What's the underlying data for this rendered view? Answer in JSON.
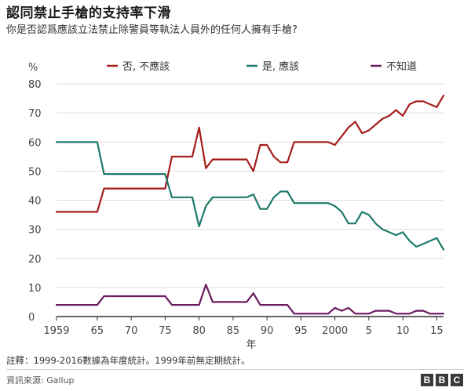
{
  "title": "認同禁止手槍的支持率下滑",
  "subtitle": "你是否認爲應該立法禁止除警員等執法人員外的任何人擁有手槍?",
  "note": "註釋：1999-2016數據為年度統計。1999年前無定期統計。",
  "source": "資訊來源: Gallup",
  "logo": [
    "B",
    "B",
    "C"
  ],
  "chart_data": {
    "type": "line",
    "ylabel": "%",
    "xlabel": "年",
    "ylim": [
      0,
      80
    ],
    "xlim": [
      1959,
      2016
    ],
    "yticks": [
      0,
      10,
      20,
      30,
      40,
      50,
      60,
      70,
      80
    ],
    "xticks": [
      {
        "x": 1959,
        "label": "1959"
      },
      {
        "x": 1965,
        "label": "65"
      },
      {
        "x": 1970,
        "label": "70"
      },
      {
        "x": 1975,
        "label": "75"
      },
      {
        "x": 1980,
        "label": "80"
      },
      {
        "x": 1985,
        "label": "85"
      },
      {
        "x": 1990,
        "label": "90"
      },
      {
        "x": 1995,
        "label": "95"
      },
      {
        "x": 2000,
        "label": "2000"
      },
      {
        "x": 2005,
        "label": "5"
      },
      {
        "x": 2010,
        "label": "10"
      },
      {
        "x": 2015,
        "label": "15"
      }
    ],
    "grid": true,
    "legend_position": "top",
    "series": [
      {
        "name": "否, 不應該",
        "color": "#a51c1c",
        "points": [
          [
            1959,
            36
          ],
          [
            1965,
            36
          ],
          [
            1966,
            44
          ],
          [
            1974,
            44
          ],
          [
            1975,
            44
          ],
          [
            1976,
            55
          ],
          [
            1978,
            55
          ],
          [
            1979,
            55
          ],
          [
            1980,
            65
          ],
          [
            1981,
            51
          ],
          [
            1982,
            54
          ],
          [
            1984,
            54
          ],
          [
            1986,
            54
          ],
          [
            1987,
            54
          ],
          [
            1988,
            50
          ],
          [
            1989,
            59
          ],
          [
            1990,
            59
          ],
          [
            1991,
            55
          ],
          [
            1992,
            53
          ],
          [
            1993,
            53
          ],
          [
            1994,
            60
          ],
          [
            1999,
            60
          ],
          [
            2000,
            59
          ],
          [
            2001,
            62
          ],
          [
            2002,
            65
          ],
          [
            2003,
            67
          ],
          [
            2004,
            63
          ],
          [
            2005,
            64
          ],
          [
            2006,
            66
          ],
          [
            2007,
            68
          ],
          [
            2008,
            69
          ],
          [
            2009,
            71
          ],
          [
            2010,
            69
          ],
          [
            2011,
            73
          ],
          [
            2012,
            74
          ],
          [
            2013,
            74
          ],
          [
            2014,
            73
          ],
          [
            2015,
            72
          ],
          [
            2016,
            76
          ]
        ]
      },
      {
        "name": "是, 應該",
        "color": "#1d7a6a",
        "points": [
          [
            1959,
            60
          ],
          [
            1965,
            60
          ],
          [
            1966,
            49
          ],
          [
            1974,
            49
          ],
          [
            1975,
            49
          ],
          [
            1976,
            41
          ],
          [
            1978,
            41
          ],
          [
            1979,
            41
          ],
          [
            1980,
            31
          ],
          [
            1981,
            38
          ],
          [
            1982,
            41
          ],
          [
            1984,
            41
          ],
          [
            1986,
            41
          ],
          [
            1987,
            41
          ],
          [
            1988,
            42
          ],
          [
            1989,
            37
          ],
          [
            1990,
            37
          ],
          [
            1991,
            41
          ],
          [
            1992,
            43
          ],
          [
            1993,
            43
          ],
          [
            1994,
            39
          ],
          [
            1999,
            39
          ],
          [
            2000,
            38
          ],
          [
            2001,
            36
          ],
          [
            2002,
            32
          ],
          [
            2003,
            32
          ],
          [
            2004,
            36
          ],
          [
            2005,
            35
          ],
          [
            2006,
            32
          ],
          [
            2007,
            30
          ],
          [
            2008,
            29
          ],
          [
            2009,
            28
          ],
          [
            2010,
            29
          ],
          [
            2011,
            26
          ],
          [
            2012,
            24
          ],
          [
            2013,
            25
          ],
          [
            2014,
            26
          ],
          [
            2015,
            27
          ],
          [
            2016,
            23
          ]
        ]
      },
      {
        "name": "不知道",
        "color": "#6b1a5e",
        "points": [
          [
            1959,
            4
          ],
          [
            1965,
            4
          ],
          [
            1966,
            7
          ],
          [
            1974,
            7
          ],
          [
            1975,
            7
          ],
          [
            1976,
            4
          ],
          [
            1978,
            4
          ],
          [
            1979,
            4
          ],
          [
            1980,
            4
          ],
          [
            1981,
            11
          ],
          [
            1982,
            5
          ],
          [
            1984,
            5
          ],
          [
            1986,
            5
          ],
          [
            1987,
            5
          ],
          [
            1988,
            8
          ],
          [
            1989,
            4
          ],
          [
            1990,
            4
          ],
          [
            1991,
            4
          ],
          [
            1992,
            4
          ],
          [
            1993,
            4
          ],
          [
            1994,
            1
          ],
          [
            1999,
            1
          ],
          [
            2000,
            3
          ],
          [
            2001,
            2
          ],
          [
            2002,
            3
          ],
          [
            2003,
            1
          ],
          [
            2004,
            1
          ],
          [
            2005,
            1
          ],
          [
            2006,
            2
          ],
          [
            2007,
            2
          ],
          [
            2008,
            2
          ],
          [
            2009,
            1
          ],
          [
            2010,
            1
          ],
          [
            2011,
            1
          ],
          [
            2012,
            2
          ],
          [
            2013,
            2
          ],
          [
            2014,
            1
          ],
          [
            2015,
            1
          ],
          [
            2016,
            1
          ]
        ]
      }
    ]
  }
}
